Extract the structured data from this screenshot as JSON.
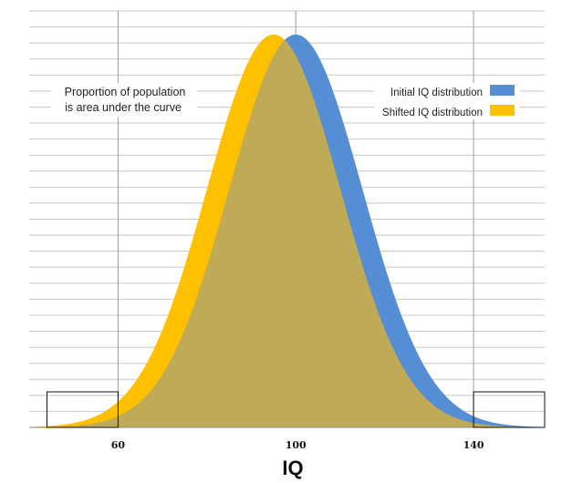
{
  "chart_data": {
    "type": "area",
    "title": "",
    "xlabel": "IQ",
    "ylabel": "",
    "xlim": [
      40,
      156
    ],
    "ylim": [
      0,
      1.06
    ],
    "x_ticks": [
      60,
      100,
      140
    ],
    "grid": true,
    "legend_position": "top-right",
    "annotation": [
      "Proportion of population",
      "is area under the curve"
    ],
    "highlight_boxes": [
      {
        "x_range": [
          44,
          60
        ]
      },
      {
        "x_range": [
          140,
          156
        ]
      }
    ],
    "series": [
      {
        "name": "Initial IQ distribution",
        "mean": 100,
        "sd": 15,
        "color": "#558ED5"
      },
      {
        "name": "Shifted IQ distribution",
        "mean": 95,
        "sd": 15,
        "color": "#FFC000"
      }
    ],
    "overlap_color": "#BFAB57"
  }
}
